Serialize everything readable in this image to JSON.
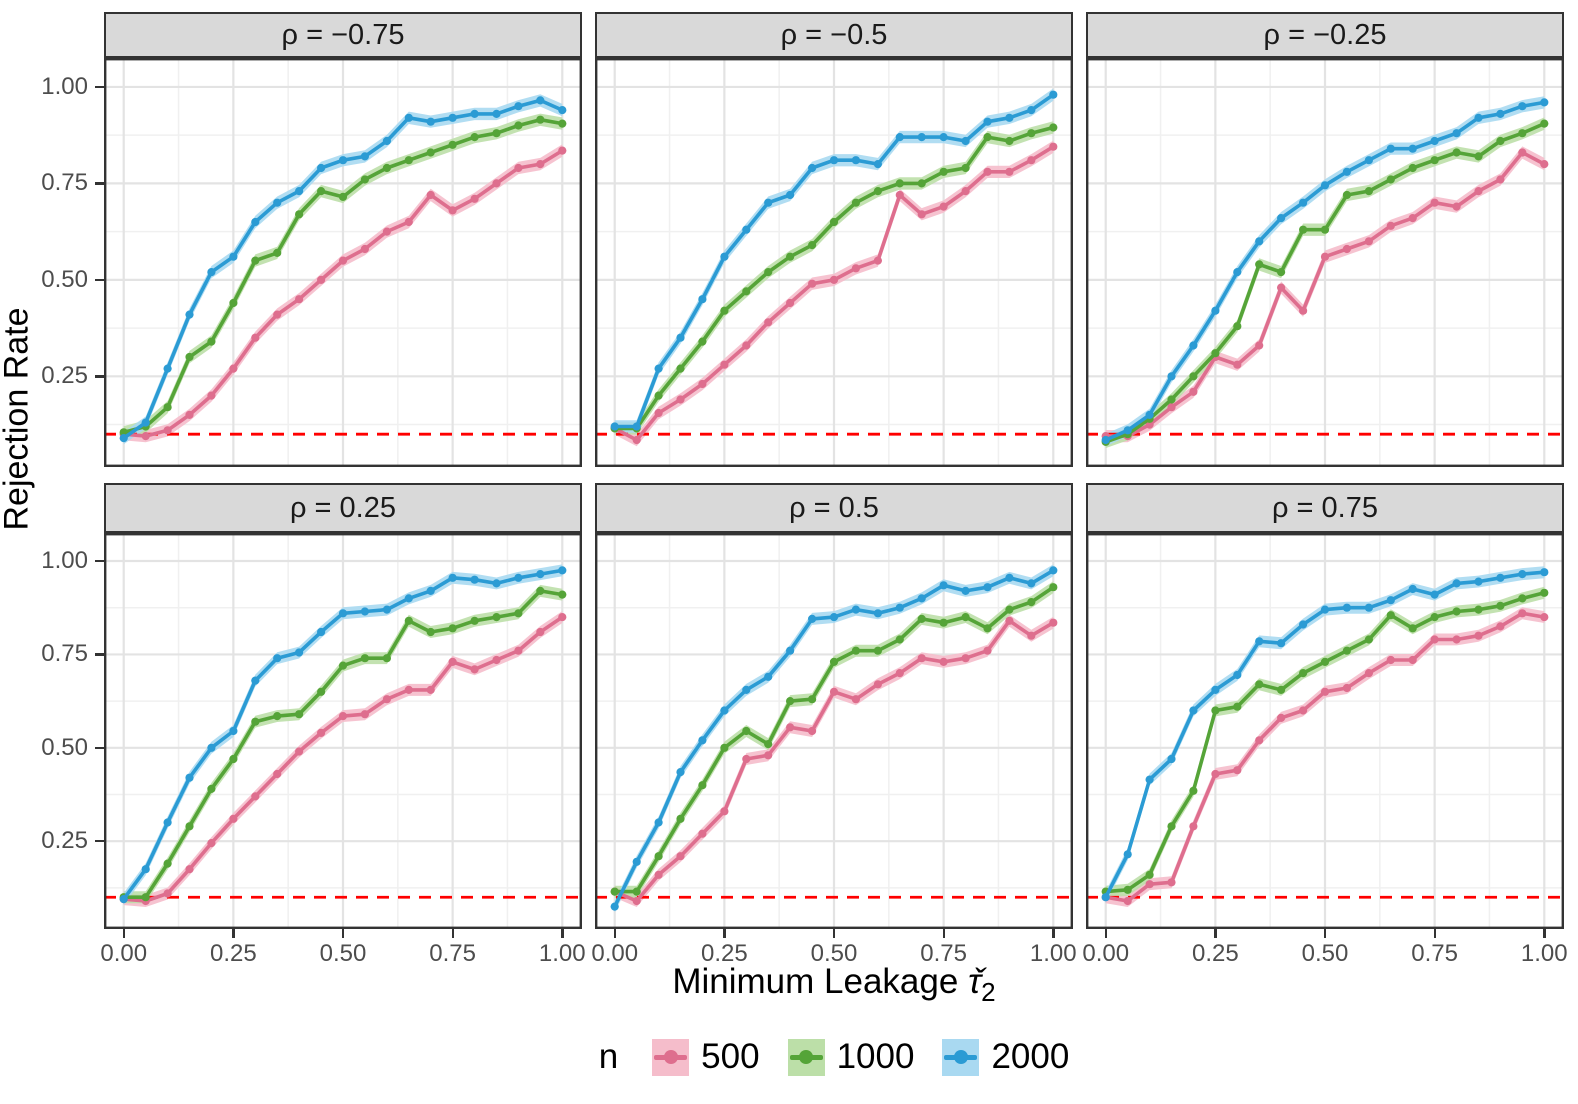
{
  "legend": {
    "title": "n",
    "entries": [
      "500",
      "1000",
      "2000"
    ]
  },
  "chart_data": {
    "type": "line",
    "title": "",
    "ylabel": "Rejection Rate",
    "xlabel_text": "Minimum Leakage",
    "xlabel_symbol": "τ̌",
    "xlabel_subscript": "2",
    "legend_position": "bottom",
    "grid": "on",
    "x_tick_labels": [
      "0.00",
      "0.25",
      "0.50",
      "0.75",
      "1.00"
    ],
    "x_tick_values": [
      0,
      0.25,
      0.5,
      0.75,
      1
    ],
    "y_tick_labels": [
      "0.25",
      "0.50",
      "0.75",
      "1.00"
    ],
    "y_tick_values": [
      0.25,
      0.5,
      0.75,
      1
    ],
    "x_minor": [
      0.125,
      0.375,
      0.625,
      0.875
    ],
    "y_minor": [
      0.125,
      0.375,
      0.625,
      0.875
    ],
    "xlim": [
      -0.045,
      1.045
    ],
    "ylim": [
      0.015,
      1.075
    ],
    "reference_line": {
      "y": 0.1,
      "color": "#FF0000",
      "style": "dashed"
    },
    "series": [
      {
        "name": "500",
        "color": "#DE6E8E",
        "fill": "#F5BDCB"
      },
      {
        "name": "1000",
        "color": "#55A438",
        "fill": "#BCDFA8"
      },
      {
        "name": "2000",
        "color": "#2B9BD4",
        "fill": "#A9D9F1"
      }
    ],
    "x": [
      0,
      0.05,
      0.1,
      0.15,
      0.2,
      0.25,
      0.3,
      0.35,
      0.4,
      0.45,
      0.5,
      0.55,
      0.6,
      0.65,
      0.7,
      0.75,
      0.8,
      0.85,
      0.9,
      0.95,
      1
    ],
    "facets": [
      {
        "label": "ρ = −0.75",
        "values": [
          [
            0.1,
            0.095,
            0.11,
            0.15,
            0.2,
            0.27,
            0.35,
            0.41,
            0.45,
            0.5,
            0.55,
            0.58,
            0.625,
            0.65,
            0.72,
            0.68,
            0.71,
            0.75,
            0.79,
            0.8,
            0.835
          ],
          [
            0.105,
            0.12,
            0.17,
            0.3,
            0.34,
            0.44,
            0.55,
            0.57,
            0.67,
            0.73,
            0.715,
            0.76,
            0.79,
            0.81,
            0.83,
            0.85,
            0.87,
            0.88,
            0.9,
            0.915,
            0.905
          ],
          [
            0.09,
            0.13,
            0.27,
            0.41,
            0.52,
            0.56,
            0.65,
            0.7,
            0.73,
            0.79,
            0.81,
            0.82,
            0.86,
            0.92,
            0.91,
            0.92,
            0.93,
            0.93,
            0.95,
            0.965,
            0.94
          ]
        ]
      },
      {
        "label": "ρ = −0.5",
        "values": [
          [
            0.115,
            0.085,
            0.155,
            0.19,
            0.23,
            0.28,
            0.33,
            0.39,
            0.44,
            0.49,
            0.5,
            0.53,
            0.55,
            0.72,
            0.67,
            0.69,
            0.73,
            0.78,
            0.78,
            0.81,
            0.845
          ],
          [
            0.115,
            0.115,
            0.2,
            0.27,
            0.34,
            0.42,
            0.47,
            0.52,
            0.56,
            0.59,
            0.65,
            0.7,
            0.73,
            0.75,
            0.75,
            0.78,
            0.79,
            0.87,
            0.86,
            0.88,
            0.895
          ],
          [
            0.12,
            0.12,
            0.27,
            0.35,
            0.45,
            0.56,
            0.63,
            0.7,
            0.72,
            0.79,
            0.81,
            0.81,
            0.8,
            0.87,
            0.87,
            0.87,
            0.86,
            0.91,
            0.92,
            0.94,
            0.98
          ]
        ]
      },
      {
        "label": "ρ = −0.25",
        "values": [
          [
            0.095,
            0.095,
            0.125,
            0.17,
            0.21,
            0.3,
            0.28,
            0.33,
            0.48,
            0.42,
            0.56,
            0.58,
            0.6,
            0.64,
            0.66,
            0.7,
            0.69,
            0.73,
            0.76,
            0.83,
            0.8
          ],
          [
            0.08,
            0.1,
            0.14,
            0.19,
            0.25,
            0.31,
            0.38,
            0.54,
            0.52,
            0.63,
            0.63,
            0.72,
            0.73,
            0.76,
            0.79,
            0.81,
            0.83,
            0.82,
            0.86,
            0.88,
            0.905
          ],
          [
            0.085,
            0.11,
            0.15,
            0.25,
            0.33,
            0.42,
            0.52,
            0.6,
            0.66,
            0.7,
            0.745,
            0.78,
            0.81,
            0.84,
            0.84,
            0.86,
            0.88,
            0.92,
            0.93,
            0.95,
            0.96
          ]
        ]
      },
      {
        "label": "ρ = 0.25",
        "values": [
          [
            0.095,
            0.09,
            0.11,
            0.175,
            0.245,
            0.31,
            0.37,
            0.43,
            0.49,
            0.54,
            0.585,
            0.59,
            0.63,
            0.655,
            0.655,
            0.73,
            0.71,
            0.735,
            0.76,
            0.81,
            0.85
          ],
          [
            0.1,
            0.1,
            0.19,
            0.29,
            0.39,
            0.47,
            0.57,
            0.585,
            0.59,
            0.65,
            0.72,
            0.74,
            0.74,
            0.84,
            0.81,
            0.82,
            0.84,
            0.85,
            0.86,
            0.92,
            0.91
          ],
          [
            0.095,
            0.175,
            0.3,
            0.42,
            0.5,
            0.545,
            0.68,
            0.74,
            0.755,
            0.81,
            0.86,
            0.865,
            0.87,
            0.9,
            0.92,
            0.955,
            0.95,
            0.94,
            0.955,
            0.965,
            0.975
          ]
        ]
      },
      {
        "label": "ρ = 0.5",
        "values": [
          [
            0.115,
            0.09,
            0.16,
            0.21,
            0.27,
            0.33,
            0.47,
            0.48,
            0.555,
            0.545,
            0.65,
            0.63,
            0.67,
            0.7,
            0.74,
            0.73,
            0.74,
            0.76,
            0.84,
            0.8,
            0.835
          ],
          [
            0.115,
            0.115,
            0.21,
            0.31,
            0.4,
            0.5,
            0.545,
            0.51,
            0.625,
            0.63,
            0.73,
            0.76,
            0.76,
            0.79,
            0.845,
            0.835,
            0.85,
            0.82,
            0.87,
            0.89,
            0.93
          ],
          [
            0.075,
            0.195,
            0.3,
            0.435,
            0.52,
            0.6,
            0.655,
            0.69,
            0.76,
            0.845,
            0.85,
            0.87,
            0.86,
            0.875,
            0.9,
            0.935,
            0.92,
            0.93,
            0.955,
            0.94,
            0.975
          ]
        ]
      },
      {
        "label": "ρ = 0.75",
        "values": [
          [
            0.1,
            0.09,
            0.135,
            0.14,
            0.29,
            0.43,
            0.44,
            0.52,
            0.58,
            0.6,
            0.65,
            0.66,
            0.7,
            0.735,
            0.735,
            0.79,
            0.79,
            0.8,
            0.825,
            0.86,
            0.85
          ],
          [
            0.115,
            0.12,
            0.16,
            0.29,
            0.385,
            0.6,
            0.61,
            0.67,
            0.655,
            0.7,
            0.73,
            0.76,
            0.79,
            0.855,
            0.82,
            0.85,
            0.865,
            0.87,
            0.88,
            0.9,
            0.915
          ],
          [
            0.1,
            0.215,
            0.415,
            0.47,
            0.6,
            0.655,
            0.695,
            0.785,
            0.78,
            0.83,
            0.87,
            0.875,
            0.875,
            0.895,
            0.925,
            0.91,
            0.94,
            0.945,
            0.955,
            0.965,
            0.97
          ]
        ]
      }
    ]
  }
}
